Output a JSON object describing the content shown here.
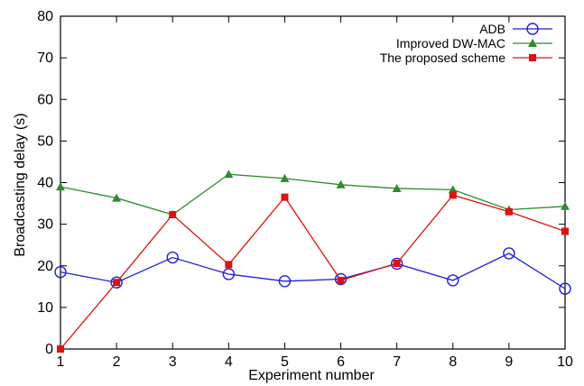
{
  "chart_data": {
    "type": "line",
    "title": "",
    "xlabel": "Experiment number",
    "ylabel": "Broadcasting delay (s)",
    "x": [
      1,
      2,
      3,
      4,
      5,
      6,
      7,
      8,
      9,
      10
    ],
    "xlim": [
      1,
      10
    ],
    "ylim": [
      0,
      80
    ],
    "yticks": [
      0,
      10,
      20,
      30,
      40,
      50,
      60,
      70,
      80
    ],
    "xticks": [
      1,
      2,
      3,
      4,
      5,
      6,
      7,
      8,
      9,
      10
    ],
    "grid": false,
    "legend_position": "top-right",
    "series": [
      {
        "name": "ADB",
        "color": "#1f1fd6",
        "marker": "open-circle",
        "values": [
          18.5,
          16,
          22,
          18,
          16.3,
          16.8,
          20.5,
          16.5,
          23,
          14.5
        ]
      },
      {
        "name": "Improved DW-MAC",
        "color": "#2e8b2e",
        "marker": "triangle",
        "values": [
          39,
          36.3,
          32.3,
          42,
          41,
          39.5,
          38.6,
          38.3,
          33.5,
          34.3
        ]
      },
      {
        "name": "The proposed scheme",
        "color": "#e01010",
        "marker": "square",
        "values": [
          0,
          16,
          32.3,
          20.3,
          36.5,
          16.5,
          20.6,
          37,
          33,
          28.3
        ]
      }
    ]
  }
}
